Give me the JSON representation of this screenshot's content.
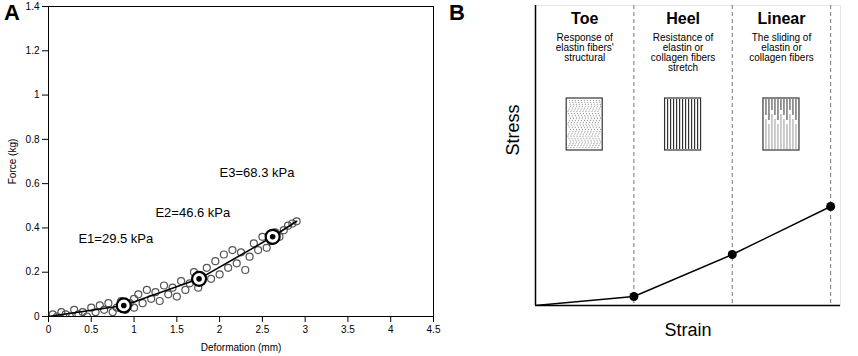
{
  "chart_data": [
    {
      "panel": "A",
      "type": "scatter",
      "x_label": "Deformation (mm)",
      "y_label": "Force (kg)",
      "xlim": [
        0,
        4.5
      ],
      "xticks": [
        0,
        0.5,
        1,
        1.5,
        2,
        2.5,
        3,
        3.5,
        4,
        4.5
      ],
      "ylim": [
        0,
        1.4
      ],
      "yticks": [
        0,
        0.2,
        0.4,
        0.6,
        0.8,
        1,
        1.2,
        1.4
      ],
      "marker": "circle",
      "color": "#555555",
      "x": [
        0.05,
        0.1,
        0.15,
        0.2,
        0.25,
        0.3,
        0.35,
        0.4,
        0.45,
        0.5,
        0.55,
        0.6,
        0.65,
        0.7,
        0.75,
        0.8,
        0.85,
        0.9,
        0.95,
        1.0,
        1.0,
        1.05,
        1.1,
        1.15,
        1.2,
        1.25,
        1.3,
        1.35,
        1.4,
        1.45,
        1.5,
        1.55,
        1.6,
        1.65,
        1.7,
        1.75,
        1.8,
        1.85,
        1.9,
        1.95,
        2.0,
        2.05,
        2.1,
        2.15,
        2.2,
        2.25,
        2.3,
        2.35,
        2.4,
        2.45,
        2.5,
        2.55,
        2.6,
        2.65,
        2.7,
        2.75,
        2.8,
        2.85,
        2.9
      ],
      "y": [
        0.01,
        0.0,
        0.02,
        0.01,
        0.0,
        0.03,
        0.01,
        0.02,
        0.0,
        0.04,
        0.02,
        0.05,
        0.03,
        0.06,
        0.02,
        0.04,
        0.07,
        0.03,
        0.06,
        0.08,
        0.04,
        0.1,
        0.06,
        0.12,
        0.08,
        0.11,
        0.07,
        0.14,
        0.1,
        0.13,
        0.09,
        0.16,
        0.12,
        0.15,
        0.2,
        0.13,
        0.18,
        0.22,
        0.17,
        0.25,
        0.19,
        0.28,
        0.22,
        0.3,
        0.24,
        0.29,
        0.21,
        0.27,
        0.33,
        0.3,
        0.36,
        0.31,
        0.34,
        0.38,
        0.36,
        0.39,
        0.41,
        0.42,
        0.43
      ],
      "line": {
        "x": [
          0,
          0.88,
          1.76,
          2.62,
          2.9
        ],
        "y": [
          0,
          0.05,
          0.17,
          0.36,
          0.43
        ],
        "color": "#000000"
      },
      "markers": {
        "x": [
          0.88,
          1.76,
          2.62
        ],
        "y": [
          0.05,
          0.17,
          0.36
        ]
      },
      "annotations": [
        {
          "text": "E1=29.5 kPa",
          "x": 0.35,
          "y": 0.35
        },
        {
          "text": "E2=46.6 kPa",
          "x": 1.25,
          "y": 0.47
        },
        {
          "text": "E3=68.3 kPa",
          "x": 2.0,
          "y": 0.65
        }
      ]
    },
    {
      "panel": "B",
      "type": "line",
      "x_label": "Strain",
      "y_label": "Stress",
      "tick_labels": false,
      "xlim": [
        0,
        3.1
      ],
      "ylim": [
        0,
        1
      ],
      "x": [
        0,
        1,
        2,
        3
      ],
      "y": [
        0,
        0.03,
        0.17,
        0.33
      ],
      "color": "#000000",
      "marker": "circle",
      "boundaries": [
        1,
        2,
        3
      ],
      "regions": [
        {
          "name": "Toe",
          "description": "Response of elastin fibers' structural"
        },
        {
          "name": "Heel",
          "description": "Resistance of elastin or collagen fibers stretch"
        },
        {
          "name": "Linear",
          "description": "The sliding of elastin or collagen fibers"
        }
      ]
    }
  ]
}
